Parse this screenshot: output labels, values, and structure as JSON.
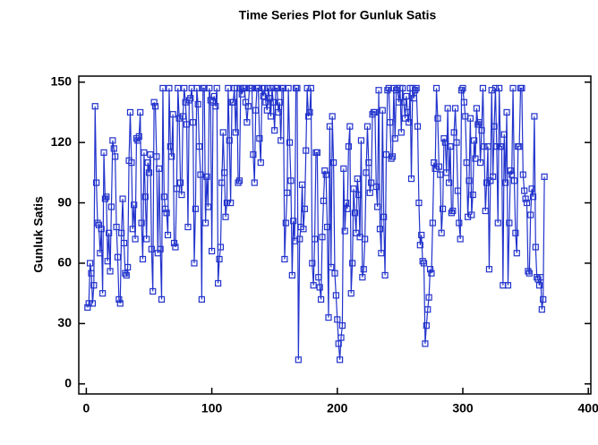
{
  "chart_data": {
    "type": "line",
    "title": "Time Series Plot for Gunluk Satis",
    "ylabel": "Gunluk Satis",
    "xlim": [
      -6,
      402
    ],
    "ylim": [
      -5,
      153
    ],
    "xticks": [
      0,
      100,
      200,
      300,
      400
    ],
    "yticks": [
      0,
      30,
      60,
      90,
      120,
      150
    ],
    "x": [
      1,
      2,
      3,
      4,
      5,
      6,
      7,
      8,
      9,
      10,
      11,
      12,
      13,
      14,
      15,
      16,
      17,
      18,
      19,
      20,
      21,
      22,
      23,
      24,
      25,
      26,
      27,
      28,
      29,
      30,
      31,
      32,
      33,
      34,
      35,
      36,
      37,
      38,
      39,
      40,
      41,
      42,
      43,
      44,
      45,
      46,
      47,
      48,
      49,
      50,
      51,
      52,
      53,
      54,
      55,
      56,
      57,
      58,
      59,
      60,
      61,
      62,
      63,
      64,
      65,
      66,
      67,
      68,
      69,
      70,
      71,
      72,
      73,
      74,
      75,
      76,
      77,
      78,
      79,
      80,
      81,
      82,
      83,
      84,
      85,
      86,
      87,
      88,
      89,
      90,
      91,
      92,
      93,
      94,
      95,
      96,
      97,
      98,
      99,
      100,
      101,
      102,
      103,
      104,
      105,
      106,
      107,
      108,
      109,
      110,
      111,
      112,
      113,
      114,
      115,
      116,
      117,
      118,
      119,
      120,
      121,
      122,
      123,
      124,
      125,
      126,
      127,
      128,
      129,
      130,
      131,
      132,
      133,
      134,
      135,
      136,
      137,
      138,
      139,
      140,
      141,
      142,
      143,
      144,
      145,
      146,
      147,
      148,
      149,
      150,
      151,
      152,
      153,
      154,
      155,
      156,
      157,
      158,
      159,
      160,
      161,
      162,
      163,
      164,
      165,
      166,
      167,
      168,
      169,
      170,
      171,
      172,
      173,
      174,
      175,
      176,
      177,
      178,
      179,
      180,
      181,
      182,
      183,
      184,
      185,
      186,
      187,
      188,
      189,
      190,
      191,
      192,
      193,
      194,
      195,
      196,
      197,
      198,
      199,
      200,
      201,
      202,
      203,
      204,
      205,
      206,
      207,
      208,
      209,
      210,
      211,
      212,
      213,
      214,
      215,
      216,
      217,
      218,
      219,
      220,
      221,
      222,
      223,
      224,
      225,
      226,
      227,
      228,
      229,
      230,
      231,
      232,
      233,
      234,
      235,
      236,
      237,
      238,
      239,
      240,
      241,
      242,
      243,
      244,
      245,
      246,
      247,
      248,
      249,
      250,
      251,
      252,
      253,
      254,
      255,
      256,
      257,
      258,
      259,
      260,
      261,
      262,
      263,
      264,
      265,
      266,
      267,
      268,
      269,
      270,
      271,
      272,
      273,
      274,
      275,
      276,
      277,
      278,
      279,
      280,
      281,
      282,
      283,
      284,
      285,
      286,
      287,
      288,
      289,
      290,
      291,
      292,
      293,
      294,
      295,
      296,
      297,
      298,
      299,
      300,
      301,
      302,
      303,
      304,
      305,
      306,
      307,
      308,
      309,
      310,
      311,
      312,
      313,
      314,
      315,
      316,
      317,
      318,
      319,
      320,
      321,
      322,
      323,
      324,
      325,
      326,
      327,
      328,
      329,
      330,
      331,
      332,
      333,
      334,
      335,
      336,
      337,
      338,
      339,
      340,
      341,
      342,
      343,
      344,
      345,
      346,
      347,
      348,
      349,
      350,
      351,
      352,
      353,
      354,
      355,
      356,
      357,
      358,
      359,
      360,
      361,
      362,
      363,
      364,
      365
    ],
    "series": [
      {
        "color": "#2233cc",
        "values": [
          38,
          40,
          60,
          55,
          40,
          49,
          138,
          100,
          80,
          79,
          65,
          77,
          45,
          115,
          92,
          93,
          61,
          75,
          56,
          88,
          121,
          117,
          113,
          78,
          63,
          42,
          40,
          75,
          92,
          70,
          55,
          54,
          58,
          111,
          135,
          110,
          77,
          89,
          72,
          122,
          121,
          123,
          135,
          80,
          62,
          115,
          93,
          72,
          110,
          105,
          114,
          67,
          46,
          140,
          138,
          113,
          65,
          107,
          67,
          42,
          147,
          93,
          87,
          85,
          74,
          147,
          118,
          113,
          134,
          70,
          68,
          97,
          147,
          132,
          100,
          94,
          133,
          147,
          140,
          129,
          78,
          141,
          142,
          147,
          130,
          60,
          87,
          147,
          139,
          118,
          104,
          42,
          147,
          147,
          80,
          103,
          88,
          147,
          141,
          66,
          140,
          143,
          138,
          147,
          50,
          62,
          68,
          100,
          125,
          105,
          83,
          90,
          147,
          121,
          90,
          140,
          140,
          147,
          125,
          147,
          100,
          101,
          147,
          144,
          147,
          147,
          140,
          130,
          138,
          147,
          147,
          147,
          114,
          100,
          136,
          147,
          147,
          122,
          110,
          147,
          143,
          147,
          140,
          136,
          147,
          142,
          133,
          147,
          140,
          126,
          147,
          147,
          135,
          140,
          121,
          147,
          147,
          62,
          80,
          95,
          147,
          120,
          101,
          54,
          81,
          71,
          147,
          147,
          12,
          72,
          78,
          99,
          77,
          87,
          116,
          147,
          133,
          135,
          147,
          60,
          49,
          72,
          115,
          115,
          53,
          48,
          42,
          73,
          91,
          106,
          104,
          78,
          33,
          128,
          58,
          133,
          110,
          55,
          44,
          32,
          20,
          12,
          23,
          29,
          107,
          76,
          90,
          87,
          118,
          128,
          45,
          60,
          97,
          85,
          75,
          102,
          94,
          73,
          121,
          53,
          57,
          72,
          105,
          128,
          110,
          95,
          100,
          134,
          135,
          135,
          98,
          88,
          146,
          77,
          65,
          136,
          83,
          54,
          114,
          146,
          147,
          130,
          112,
          113,
          147,
          122,
          146,
          147,
          140,
          147,
          125,
          147,
          140,
          132,
          143,
          135,
          130,
          147,
          102,
          147,
          142,
          146,
          147,
          128,
          90,
          69,
          74,
          61,
          60,
          20,
          29,
          37,
          43,
          57,
          55,
          80,
          110,
          107,
          147,
          132,
          108,
          104,
          75,
          87,
          122,
          120,
          105,
          137,
          100,
          118,
          85,
          86,
          125,
          137,
          120,
          96,
          80,
          72,
          146,
          147,
          140,
          133,
          110,
          83,
          101,
          132,
          84,
          94,
          121,
          112,
          137,
          129,
          130,
          110,
          126,
          147,
          118,
          86,
          100,
          118,
          57,
          101,
          146,
          103,
          128,
          147,
          118,
          80,
          147,
          118,
          118,
          49,
          124,
          100,
          135,
          49,
          80,
          106,
          104,
          147,
          101,
          75,
          65,
          118,
          118,
          147,
          147,
          104,
          96,
          92,
          90,
          56,
          55,
          84,
          97,
          93,
          133,
          68,
          53,
          52,
          49,
          53,
          37,
          42,
          103
        ]
      }
    ]
  }
}
